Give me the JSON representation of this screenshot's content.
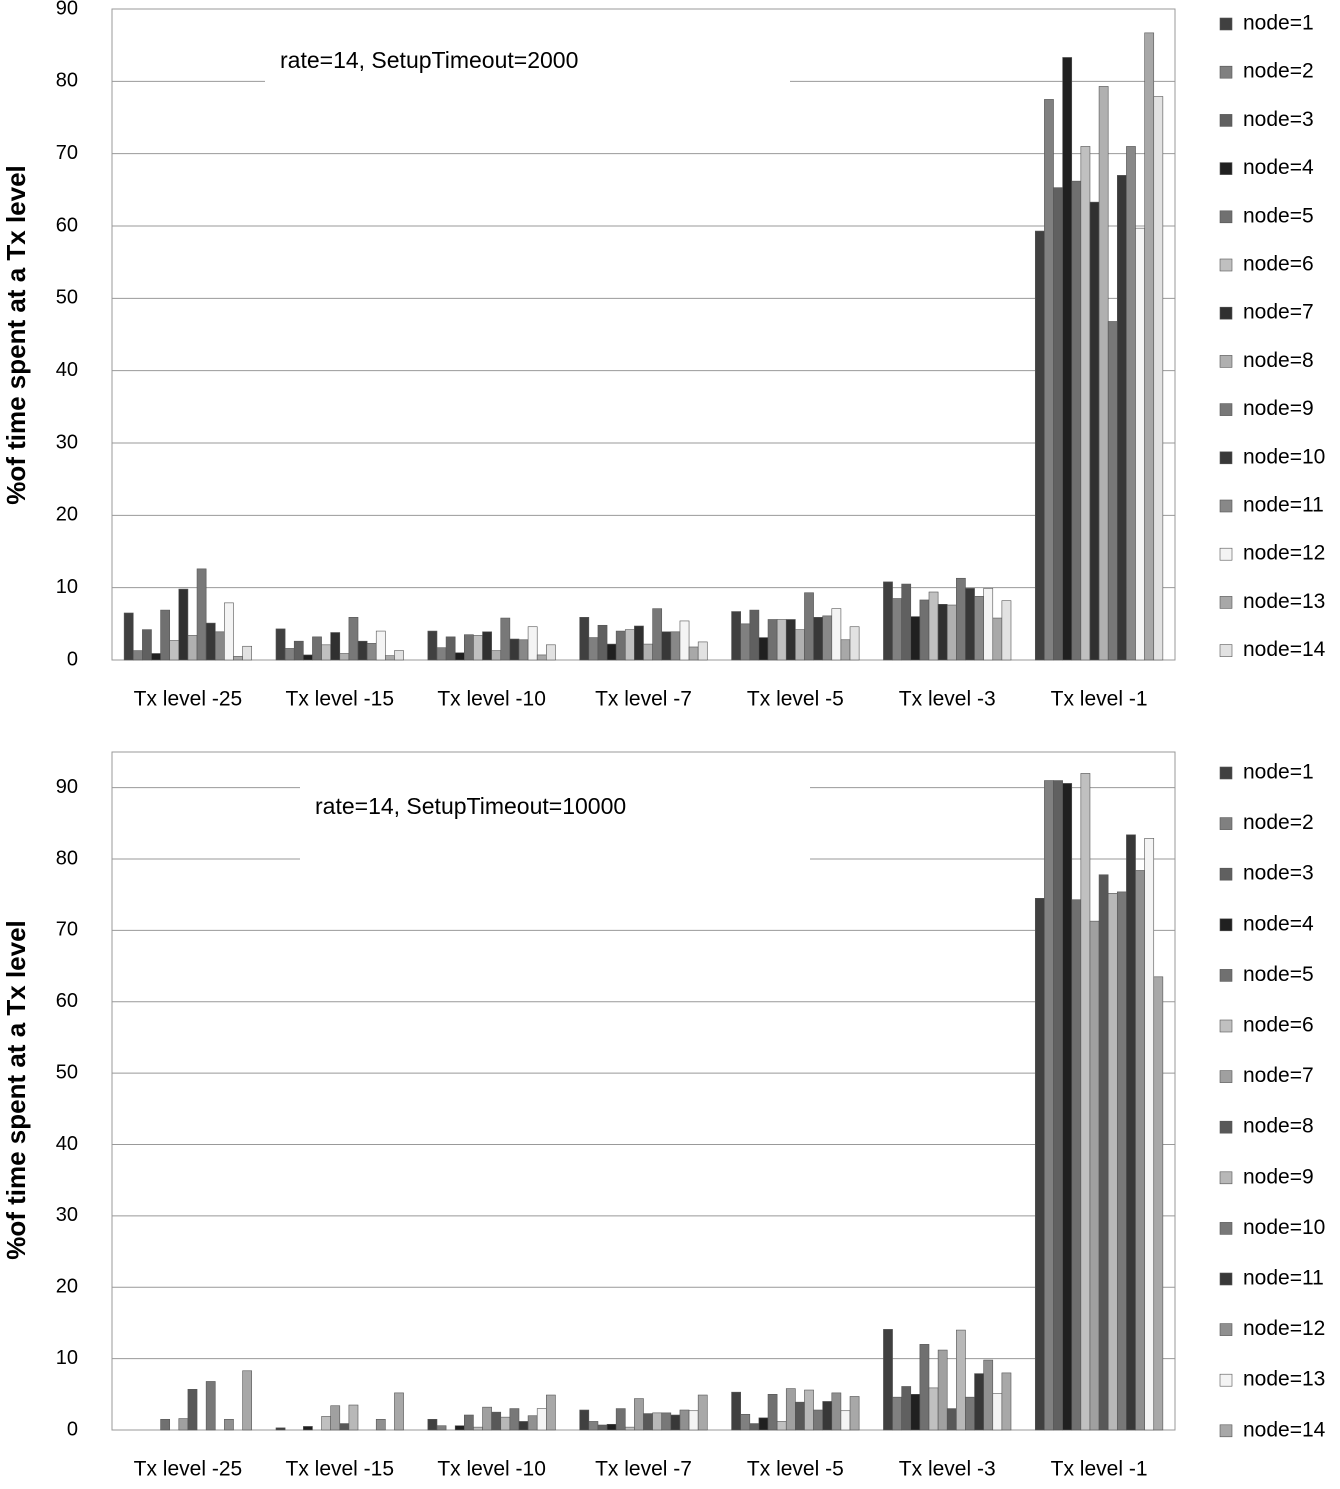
{
  "chart_data": [
    {
      "type": "bar",
      "annotation": "rate=14, SetupTimeout=2000",
      "ylabel": "%of time spent at a Tx level",
      "categories": [
        "Tx level -25",
        "Tx level -15",
        "Tx level -10",
        "Tx level -7",
        "Tx level -5",
        "Tx level -3",
        "Tx level -1"
      ],
      "ylim": [
        0,
        90
      ],
      "yticks": [
        0,
        10,
        20,
        30,
        40,
        50,
        60,
        70,
        80,
        90
      ],
      "grid": true,
      "legend": "right",
      "series": [
        {
          "name": "node=1",
          "color": "#404040",
          "values": [
            6.5,
            4.3,
            4.0,
            5.9,
            6.7,
            10.8,
            59.3
          ]
        },
        {
          "name": "node=2",
          "color": "#808080",
          "values": [
            1.3,
            1.6,
            1.7,
            3.1,
            5.0,
            8.5,
            77.5
          ]
        },
        {
          "name": "node=3",
          "color": "#606060",
          "values": [
            4.2,
            2.6,
            3.2,
            4.8,
            6.9,
            10.5,
            65.3
          ]
        },
        {
          "name": "node=4",
          "color": "#202020",
          "values": [
            0.9,
            0.7,
            1.0,
            2.2,
            3.1,
            6.0,
            83.3
          ]
        },
        {
          "name": "node=5",
          "color": "#707070",
          "values": [
            6.9,
            3.2,
            3.5,
            4.0,
            5.6,
            8.3,
            66.2
          ]
        },
        {
          "name": "node=6",
          "color": "#c0c0c0",
          "values": [
            2.7,
            2.1,
            3.4,
            4.2,
            5.6,
            9.4,
            71.0
          ]
        },
        {
          "name": "node=7",
          "color": "#303030",
          "values": [
            9.8,
            3.8,
            3.9,
            4.7,
            5.6,
            7.7,
            63.3
          ]
        },
        {
          "name": "node=8",
          "color": "#b0b0b0",
          "values": [
            3.4,
            0.9,
            1.3,
            2.2,
            4.2,
            7.6,
            79.3
          ]
        },
        {
          "name": "node=9",
          "color": "#787878",
          "values": [
            12.6,
            5.9,
            5.8,
            7.1,
            9.3,
            11.3,
            46.8
          ]
        },
        {
          "name": "node=10",
          "color": "#383838",
          "values": [
            5.1,
            2.6,
            2.9,
            3.9,
            5.9,
            9.9,
            67.0
          ]
        },
        {
          "name": "node=11",
          "color": "#888888",
          "values": [
            3.9,
            2.3,
            2.8,
            3.9,
            6.1,
            8.8,
            71.0
          ]
        },
        {
          "name": "node=12",
          "color": "#f4f4f4",
          "values": [
            7.9,
            4.0,
            4.6,
            5.4,
            7.1,
            9.9,
            59.7
          ]
        },
        {
          "name": "node=13",
          "color": "#a8a8a8",
          "values": [
            0.5,
            0.6,
            0.7,
            1.8,
            2.8,
            5.8,
            86.7
          ]
        },
        {
          "name": "node=14",
          "color": "#e2e2e2",
          "values": [
            1.9,
            1.3,
            2.1,
            2.5,
            4.6,
            8.2,
            77.9
          ]
        }
      ]
    },
    {
      "type": "bar",
      "annotation": "rate=14, SetupTimeout=10000",
      "ylabel": "%of time spent at a Tx level",
      "categories": [
        "Tx level -25",
        "Tx level -15",
        "Tx level -10",
        "Tx level -7",
        "Tx level -5",
        "Tx level -3",
        "Tx level -1"
      ],
      "ylim": [
        0,
        95
      ],
      "yticks": [
        0,
        10,
        20,
        30,
        40,
        50,
        60,
        70,
        80,
        90
      ],
      "grid": true,
      "legend": "right",
      "series": [
        {
          "name": "node=1",
          "color": "#404040",
          "values": [
            0,
            0.3,
            1.5,
            2.8,
            5.3,
            14.1,
            74.5
          ]
        },
        {
          "name": "node=2",
          "color": "#808080",
          "values": [
            0,
            0,
            0.6,
            1.2,
            2.2,
            4.6,
            91.0
          ]
        },
        {
          "name": "node=3",
          "color": "#606060",
          "values": [
            0,
            0,
            0,
            0.7,
            0.9,
            6.1,
            91.0
          ]
        },
        {
          "name": "node=4",
          "color": "#202020",
          "values": [
            0,
            0.5,
            0.6,
            0.8,
            1.7,
            5.0,
            90.6
          ]
        },
        {
          "name": "node=5",
          "color": "#707070",
          "values": [
            1.5,
            0,
            2.1,
            3.0,
            5.0,
            12.0,
            74.3
          ]
        },
        {
          "name": "node=6",
          "color": "#c0c0c0",
          "values": [
            0,
            1.9,
            0.4,
            0.4,
            1.2,
            5.9,
            92.0
          ]
        },
        {
          "name": "node=7",
          "color": "#a0a0a0",
          "values": [
            1.6,
            3.4,
            3.2,
            4.4,
            5.8,
            11.2,
            71.3
          ]
        },
        {
          "name": "node=8",
          "color": "#585858",
          "values": [
            5.7,
            0.9,
            2.5,
            2.3,
            3.9,
            3.0,
            77.8
          ]
        },
        {
          "name": "node=9",
          "color": "#b8b8b8",
          "values": [
            0,
            3.5,
            1.8,
            2.4,
            5.6,
            14.0,
            75.2
          ]
        },
        {
          "name": "node=10",
          "color": "#787878",
          "values": [
            6.8,
            0,
            3.0,
            2.4,
            2.8,
            4.6,
            75.4
          ]
        },
        {
          "name": "node=11",
          "color": "#383838",
          "values": [
            0,
            0,
            1.2,
            2.1,
            4.0,
            7.9,
            83.4
          ]
        },
        {
          "name": "node=12",
          "color": "#909090",
          "values": [
            1.5,
            1.5,
            2.0,
            2.8,
            5.2,
            9.8,
            78.4
          ]
        },
        {
          "name": "node=13",
          "color": "#f4f4f4",
          "values": [
            0,
            0,
            3.0,
            2.7,
            2.7,
            5.1,
            82.9
          ]
        },
        {
          "name": "node=14",
          "color": "#a8a8a8",
          "values": [
            8.3,
            5.2,
            4.9,
            4.9,
            4.7,
            8.0,
            63.5
          ]
        }
      ]
    }
  ]
}
